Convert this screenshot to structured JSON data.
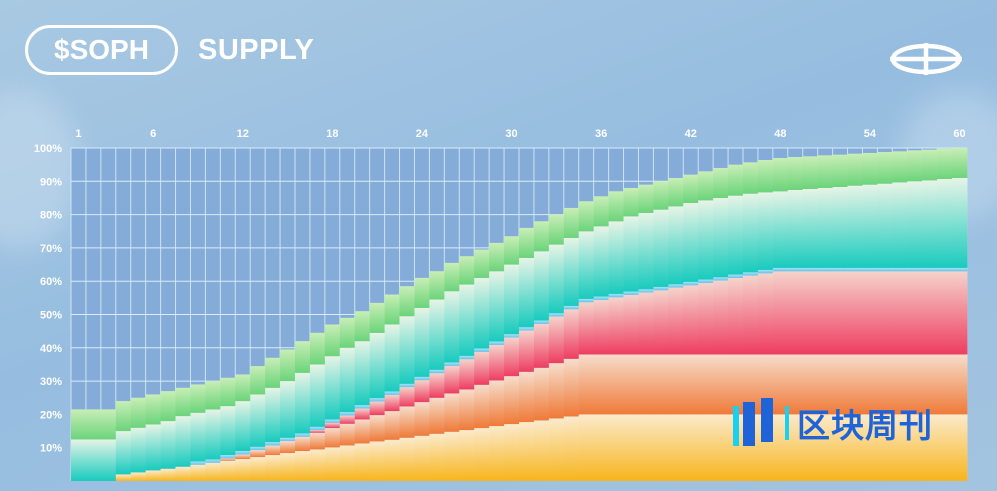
{
  "header": {
    "token": "$SOPH",
    "title": "SUPPLY",
    "logo_icon": "sophon-logo-icon"
  },
  "watermark": {
    "text": "区块周刊",
    "icon": "bars-logo-icon",
    "color": "#1e63d8"
  },
  "chart_data": {
    "type": "area",
    "stacked": true,
    "step": true,
    "title": "$SOPH SUPPLY",
    "xlabel": "",
    "ylabel": "",
    "x": [
      1,
      2,
      3,
      4,
      5,
      6,
      7,
      8,
      9,
      10,
      11,
      12,
      13,
      14,
      15,
      16,
      17,
      18,
      19,
      20,
      21,
      22,
      23,
      24,
      25,
      26,
      27,
      28,
      29,
      30,
      31,
      32,
      33,
      34,
      35,
      36,
      37,
      38,
      39,
      40,
      41,
      42,
      43,
      44,
      45,
      46,
      47,
      48,
      49,
      50,
      51,
      52,
      53,
      54,
      55,
      56,
      57,
      58,
      59,
      60
    ],
    "x_tick_labels": [
      "1",
      "6",
      "12",
      "18",
      "24",
      "30",
      "36",
      "42",
      "48",
      "54",
      "60"
    ],
    "x_tick_values": [
      1,
      6,
      12,
      18,
      24,
      30,
      36,
      42,
      48,
      54,
      60
    ],
    "y_tick_labels": [
      "10%",
      "20%",
      "30%",
      "40%",
      "50%",
      "60%",
      "70%",
      "80%",
      "90%",
      "100%"
    ],
    "y_tick_values": [
      10,
      20,
      30,
      40,
      50,
      60,
      70,
      80,
      90,
      100
    ],
    "ylim": [
      0,
      100
    ],
    "xlim": [
      1,
      60
    ],
    "grid": true,
    "series": [
      {
        "color_top": "#fbeacb",
        "color_bottom": "#f7b51c",
        "values": [
          0,
          0,
          0,
          2.0,
          2.6,
          3.2,
          3.7,
          4.3,
          4.9,
          5.5,
          6.1,
          6.6,
          7.2,
          7.8,
          8.4,
          9.0,
          9.5,
          10.1,
          10.7,
          11.3,
          11.9,
          12.4,
          13.0,
          13.6,
          14.2,
          14.8,
          15.3,
          15.9,
          16.5,
          17.1,
          17.7,
          18.2,
          18.8,
          19.4,
          20,
          20,
          20,
          20,
          20,
          20,
          20,
          20,
          20,
          20,
          20,
          20,
          20,
          20,
          20,
          20,
          20,
          20,
          20,
          20,
          20,
          20,
          20,
          20,
          20,
          20
        ]
      },
      {
        "color_top": "#f6ddcb",
        "color_bottom": "#ef7a38",
        "values": [
          0,
          0,
          0,
          0,
          0,
          0,
          0,
          0,
          0,
          0,
          0.7,
          1.4,
          2.1,
          2.9,
          3.6,
          4.3,
          5.0,
          5.8,
          6.5,
          7.2,
          7.9,
          8.6,
          9.4,
          10.1,
          10.8,
          11.5,
          12.2,
          13.0,
          13.7,
          14.4,
          15.1,
          15.8,
          16.6,
          17.3,
          18,
          18,
          18,
          18,
          18,
          18,
          18,
          18,
          18,
          18,
          18,
          18,
          18,
          18,
          18,
          18,
          18,
          18,
          18,
          18,
          18,
          18,
          18,
          18,
          18,
          18
        ]
      },
      {
        "color_top": "#f5d3cc",
        "color_bottom": "#ee3d60",
        "values": [
          0,
          0,
          0,
          0,
          0,
          0,
          0,
          0,
          0,
          0,
          0,
          0,
          0,
          0,
          0,
          0,
          0.8,
          1.6,
          2.5,
          3.3,
          4.1,
          4.9,
          5.8,
          6.6,
          7.4,
          8.3,
          9.1,
          9.9,
          10.7,
          11.6,
          12.4,
          13.2,
          14.0,
          14.9,
          15.7,
          16.4,
          17.2,
          17.9,
          18.6,
          19.3,
          20.1,
          20.8,
          21.5,
          22.2,
          23.0,
          23.7,
          24.4,
          25,
          25,
          25,
          25,
          25,
          25,
          25,
          25,
          25,
          25,
          25,
          25,
          25
        ]
      },
      {
        "color_top": "#a5e4f6",
        "color_bottom": "#62c6ec",
        "values": [
          0,
          0,
          0,
          0,
          0,
          0,
          0,
          0,
          1,
          1,
          1,
          1,
          1,
          1,
          1,
          1,
          1,
          1,
          1,
          1,
          1,
          1,
          1,
          1,
          1,
          1,
          1,
          1,
          1,
          1,
          1,
          1,
          1,
          1,
          1,
          1,
          1,
          1,
          1,
          1,
          1,
          1,
          1,
          1,
          1,
          1,
          1,
          1,
          1,
          1,
          1,
          1,
          1,
          1,
          1,
          1,
          1,
          1,
          1,
          1
        ]
      },
      {
        "color_top": "#e6f4e6",
        "color_bottom": "#18cbbe",
        "values": [
          12.5,
          12.5,
          12.5,
          13.0,
          13.4,
          13.8,
          14.3,
          15.2,
          14.6,
          15.0,
          14.7,
          15.0,
          15.7,
          16.3,
          17.0,
          18.2,
          18.7,
          19.0,
          19.3,
          19.2,
          19.6,
          20.1,
          20.3,
          20.7,
          21.1,
          21.4,
          21.4,
          21.2,
          21.1,
          20.9,
          20.8,
          20.8,
          20.6,
          20.4,
          20.3,
          21.1,
          21.8,
          22.6,
          22.9,
          23.2,
          23.4,
          23.7,
          23.8,
          23.8,
          23.7,
          23.6,
          23.3,
          23.0,
          23.4,
          23.7,
          24.0,
          24.3,
          24.7,
          25.0,
          25.3,
          25.7,
          26.0,
          26.3,
          26.7,
          27.0
        ]
      },
      {
        "color_top": "#c8eeb6",
        "color_bottom": "#6bd47a",
        "values": [
          9,
          9,
          9,
          9,
          9,
          9,
          9,
          8.5,
          8.5,
          8.5,
          8.5,
          8,
          8.5,
          9,
          9.5,
          9.5,
          9.5,
          9.5,
          9,
          9,
          9,
          9,
          9,
          9,
          8.5,
          8.5,
          8.5,
          8.5,
          8.5,
          8.5,
          9,
          9,
          9,
          9,
          9,
          9,
          9,
          8.5,
          8.5,
          8.5,
          8.5,
          8.5,
          8.7,
          9,
          9.3,
          9.4,
          9.7,
          10,
          9.9,
          9.8,
          9.8,
          9.7,
          9.6,
          9.5,
          9.5,
          9.3,
          9.3,
          9.2,
          9.1,
          9
        ]
      }
    ]
  }
}
